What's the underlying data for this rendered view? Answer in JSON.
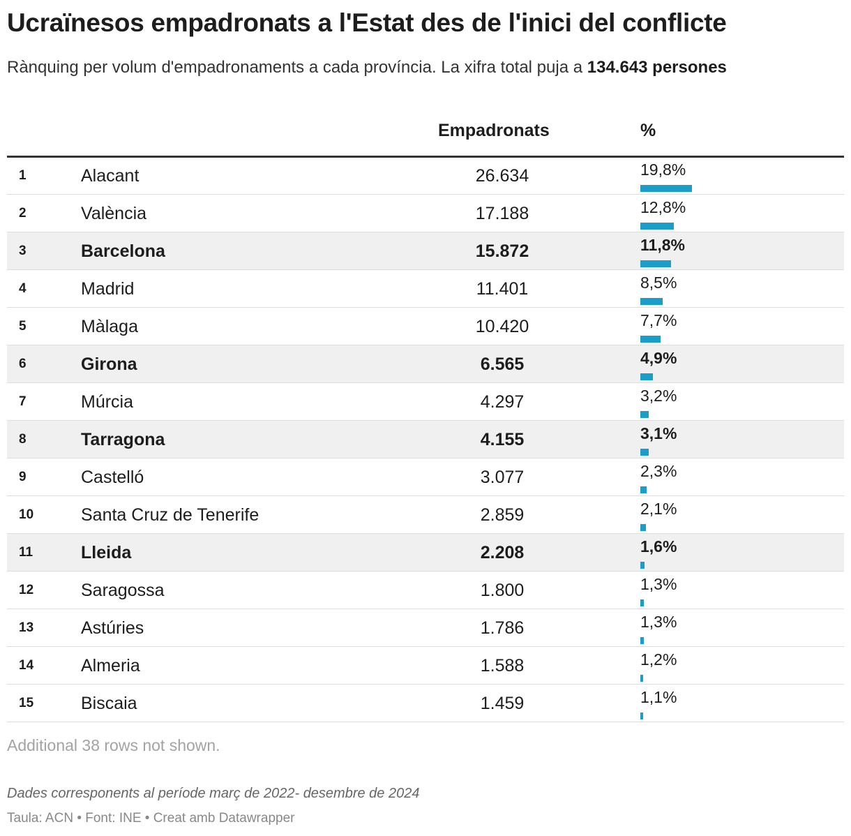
{
  "title": "Ucraïnesos empadronats a l'Estat des de l'inici del conflicte",
  "subtitle_prefix": "Rànquing per volum d'empadronaments a cada província. La xifra total puja a ",
  "subtitle_total": "134.643 persones",
  "columns": {
    "empadronats": "Empadronats",
    "percent": "%"
  },
  "colors": {
    "bar": "#1a9ec9",
    "highlight_row": "#f0f0f0",
    "rule": "#333333"
  },
  "chart_data": {
    "type": "table",
    "title": "Ucraïnesos empadronats a l'Estat des de l'inici del conflicte",
    "columns": [
      "",
      "",
      "Empadronats",
      "%"
    ],
    "rows": [
      {
        "rank": "1",
        "name": "Alacant",
        "value": "26.634",
        "pct_label": "19,8%",
        "pct": 19.8,
        "highlight": false
      },
      {
        "rank": "2",
        "name": "València",
        "value": "17.188",
        "pct_label": "12,8%",
        "pct": 12.8,
        "highlight": false
      },
      {
        "rank": "3",
        "name": "Barcelona",
        "value": "15.872",
        "pct_label": "11,8%",
        "pct": 11.8,
        "highlight": true
      },
      {
        "rank": "4",
        "name": "Madrid",
        "value": "11.401",
        "pct_label": "8,5%",
        "pct": 8.5,
        "highlight": false
      },
      {
        "rank": "5",
        "name": "Màlaga",
        "value": "10.420",
        "pct_label": "7,7%",
        "pct": 7.7,
        "highlight": false
      },
      {
        "rank": "6",
        "name": "Girona",
        "value": "6.565",
        "pct_label": "4,9%",
        "pct": 4.9,
        "highlight": true
      },
      {
        "rank": "7",
        "name": "Múrcia",
        "value": "4.297",
        "pct_label": "3,2%",
        "pct": 3.2,
        "highlight": false
      },
      {
        "rank": "8",
        "name": "Tarragona",
        "value": "4.155",
        "pct_label": "3,1%",
        "pct": 3.1,
        "highlight": true
      },
      {
        "rank": "9",
        "name": "Castelló",
        "value": "3.077",
        "pct_label": "2,3%",
        "pct": 2.3,
        "highlight": false
      },
      {
        "rank": "10",
        "name": "Santa Cruz de Tenerife",
        "value": "2.859",
        "pct_label": "2,1%",
        "pct": 2.1,
        "highlight": false
      },
      {
        "rank": "11",
        "name": "Lleida",
        "value": "2.208",
        "pct_label": "1,6%",
        "pct": 1.6,
        "highlight": true
      },
      {
        "rank": "12",
        "name": "Saragossa",
        "value": "1.800",
        "pct_label": "1,3%",
        "pct": 1.3,
        "highlight": false
      },
      {
        "rank": "13",
        "name": "Astúries",
        "value": "1.786",
        "pct_label": "1,3%",
        "pct": 1.3,
        "highlight": false
      },
      {
        "rank": "14",
        "name": "Almeria",
        "value": "1.588",
        "pct_label": "1,2%",
        "pct": 1.2,
        "highlight": false
      },
      {
        "rank": "15",
        "name": "Biscaia",
        "value": "1.459",
        "pct_label": "1,1%",
        "pct": 1.1,
        "highlight": false
      }
    ],
    "bar_max_pct": 19.8
  },
  "note": "Additional 38 rows not shown.",
  "footnote": "Dades corresponents al període març de 2022- desembre de 2024",
  "credits": "Taula: ACN • Font: INE • Creat amb Datawrapper"
}
